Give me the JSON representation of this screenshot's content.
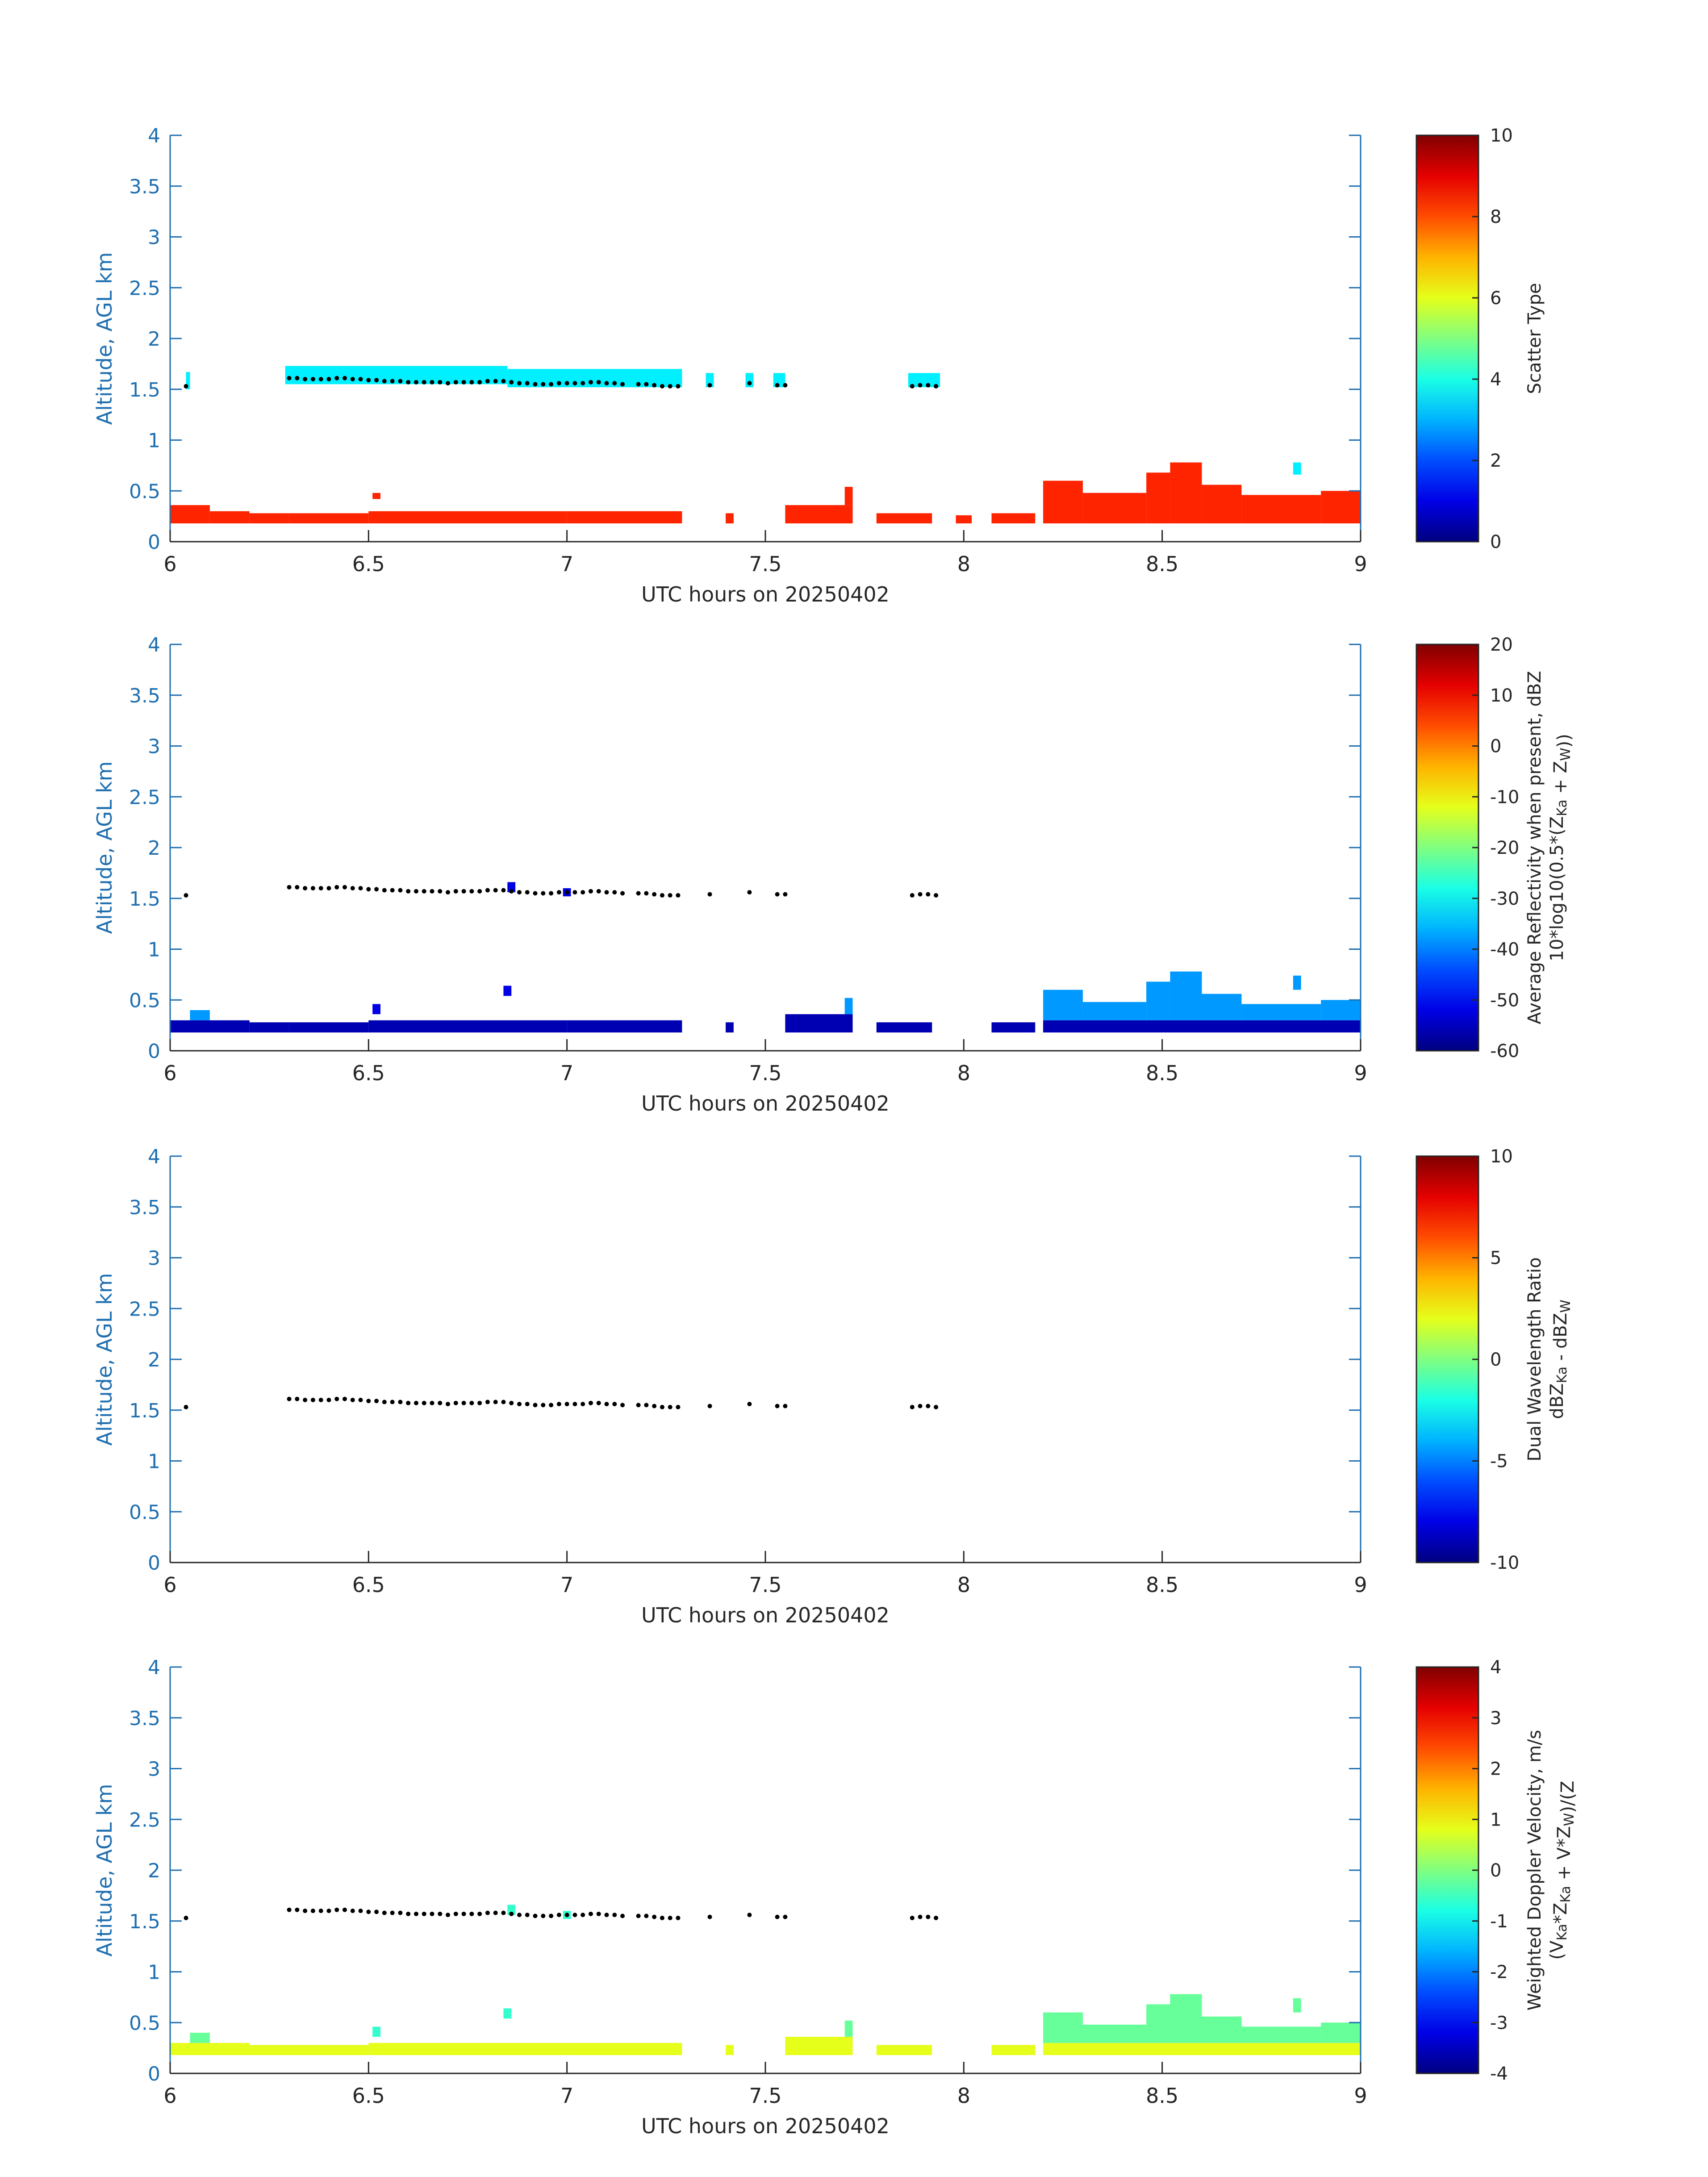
{
  "chart_data": [
    {
      "type": "heatmap",
      "title": "",
      "xlabel": "UTC hours on 20250402",
      "ylabel": "Altitude, AGL km",
      "xlim": [
        6,
        9
      ],
      "ylim": [
        0,
        4
      ],
      "xticks": [
        "6",
        "6.5",
        "7",
        "7.5",
        "8",
        "8.5",
        "9"
      ],
      "yticks": [
        "0",
        "0.5",
        "1",
        "1.5",
        "2",
        "2.5",
        "3",
        "3.5",
        "4"
      ],
      "colorbar": {
        "label": "Scatter Type",
        "min": 0,
        "max": 10,
        "ticks": [
          "0",
          "2",
          "4",
          "6",
          "8",
          "10"
        ]
      },
      "layers": [
        {
          "name": "cloud layer",
          "value": 3.6,
          "segments": [
            [
              6.04,
              6.05,
              1.5,
              1.67
            ],
            [
              6.29,
              6.85,
              1.55,
              1.73
            ],
            [
              6.85,
              7.29,
              1.52,
              1.7
            ],
            [
              7.35,
              7.37,
              1.52,
              1.66
            ],
            [
              7.45,
              7.47,
              1.52,
              1.66
            ],
            [
              7.52,
              7.55,
              1.52,
              1.66
            ],
            [
              7.86,
              7.94,
              1.52,
              1.66
            ],
            [
              8.83,
              8.85,
              0.66,
              0.78
            ]
          ]
        },
        {
          "name": "near-surface layer",
          "value": 8.4,
          "segments": [
            [
              6.0,
              6.1,
              0.18,
              0.36
            ],
            [
              6.1,
              6.2,
              0.18,
              0.3
            ],
            [
              6.2,
              6.3,
              0.18,
              0.28
            ],
            [
              6.3,
              6.5,
              0.18,
              0.28
            ],
            [
              6.51,
              6.53,
              0.42,
              0.48
            ],
            [
              6.5,
              7.0,
              0.18,
              0.3
            ],
            [
              7.0,
              7.29,
              0.18,
              0.3
            ],
            [
              7.4,
              7.42,
              0.18,
              0.28
            ],
            [
              7.55,
              7.72,
              0.18,
              0.36
            ],
            [
              7.7,
              7.72,
              0.36,
              0.54
            ],
            [
              7.78,
              7.92,
              0.18,
              0.28
            ],
            [
              7.98,
              8.02,
              0.18,
              0.26
            ],
            [
              8.07,
              8.18,
              0.18,
              0.28
            ],
            [
              8.2,
              8.3,
              0.18,
              0.6
            ],
            [
              8.3,
              8.46,
              0.18,
              0.48
            ],
            [
              8.46,
              8.52,
              0.18,
              0.68
            ],
            [
              8.52,
              8.6,
              0.18,
              0.78
            ],
            [
              8.6,
              8.7,
              0.18,
              0.56
            ],
            [
              8.7,
              8.9,
              0.18,
              0.46
            ],
            [
              8.9,
              9.0,
              0.18,
              0.5
            ]
          ]
        }
      ],
      "markers": {
        "name": "cloud base",
        "x": [
          6.04,
          6.3,
          6.32,
          6.34,
          6.36,
          6.38,
          6.4,
          6.42,
          6.44,
          6.46,
          6.48,
          6.5,
          6.52,
          6.54,
          6.56,
          6.58,
          6.6,
          6.62,
          6.64,
          6.66,
          6.68,
          6.7,
          6.72,
          6.74,
          6.76,
          6.78,
          6.8,
          6.82,
          6.84,
          6.86,
          6.88,
          6.9,
          6.92,
          6.94,
          6.96,
          6.98,
          7.0,
          7.02,
          7.04,
          7.06,
          7.08,
          7.1,
          7.12,
          7.14,
          7.18,
          7.2,
          7.22,
          7.24,
          7.26,
          7.28,
          7.36,
          7.46,
          7.53,
          7.55,
          7.87,
          7.89,
          7.91,
          7.93
        ],
        "y": [
          1.53,
          1.61,
          1.61,
          1.6,
          1.6,
          1.6,
          1.6,
          1.61,
          1.61,
          1.6,
          1.6,
          1.59,
          1.59,
          1.58,
          1.58,
          1.58,
          1.57,
          1.57,
          1.57,
          1.57,
          1.57,
          1.56,
          1.57,
          1.57,
          1.57,
          1.57,
          1.58,
          1.58,
          1.58,
          1.57,
          1.56,
          1.56,
          1.55,
          1.55,
          1.55,
          1.56,
          1.56,
          1.56,
          1.56,
          1.57,
          1.57,
          1.56,
          1.56,
          1.55,
          1.55,
          1.55,
          1.54,
          1.53,
          1.53,
          1.53,
          1.54,
          1.56,
          1.54,
          1.54,
          1.53,
          1.54,
          1.54,
          1.53
        ]
      }
    },
    {
      "type": "heatmap",
      "title": "",
      "xlabel": "UTC hours on 20250402",
      "ylabel": "Altitude, AGL km",
      "xlim": [
        6,
        9
      ],
      "ylim": [
        0,
        4
      ],
      "xticks": [
        "6",
        "6.5",
        "7",
        "7.5",
        "8",
        "8.5",
        "9"
      ],
      "yticks": [
        "0",
        "0.5",
        "1",
        "1.5",
        "2",
        "2.5",
        "3",
        "3.5",
        "4"
      ],
      "colorbar": {
        "label": "Average Reflectivity when present, dBZ",
        "label2": "10*log10(0.5*(Z",
        "label2_sub1": "Ka",
        "label2_mid": " + Z",
        "label2_sub2": "W",
        "label2_end": "))",
        "min": -60,
        "max": 20,
        "ticks": [
          "-60",
          "-50",
          "-40",
          "-30",
          "-20",
          "-10",
          "0",
          "10",
          "20"
        ]
      },
      "layers": [
        {
          "name": "cloud echoes",
          "value": -52,
          "segments": [
            [
              6.85,
              6.87,
              1.56,
              1.66
            ],
            [
              6.99,
              7.01,
              1.52,
              1.6
            ],
            [
              6.84,
              6.86,
              0.54,
              0.64
            ],
            [
              6.51,
              6.53,
              0.36,
              0.46
            ]
          ]
        },
        {
          "name": "near-surface echoes",
          "value": -56,
          "segments": [
            [
              6.0,
              6.2,
              0.18,
              0.3
            ],
            [
              6.2,
              6.3,
              0.18,
              0.28
            ],
            [
              6.3,
              6.5,
              0.18,
              0.28
            ],
            [
              6.5,
              7.0,
              0.18,
              0.3
            ],
            [
              7.0,
              7.29,
              0.18,
              0.3
            ],
            [
              7.4,
              7.42,
              0.18,
              0.28
            ],
            [
              7.55,
              7.72,
              0.18,
              0.36
            ],
            [
              7.78,
              7.92,
              0.18,
              0.28
            ],
            [
              8.07,
              8.18,
              0.18,
              0.28
            ],
            [
              8.2,
              9.0,
              0.18,
              0.3
            ]
          ]
        },
        {
          "name": "upper low-level echoes",
          "value": -38,
          "segments": [
            [
              8.2,
              8.3,
              0.3,
              0.6
            ],
            [
              8.3,
              8.46,
              0.3,
              0.48
            ],
            [
              8.46,
              8.52,
              0.3,
              0.68
            ],
            [
              8.52,
              8.6,
              0.3,
              0.78
            ],
            [
              8.6,
              8.7,
              0.3,
              0.56
            ],
            [
              8.7,
              8.9,
              0.3,
              0.46
            ],
            [
              8.9,
              9.0,
              0.3,
              0.5
            ],
            [
              8.83,
              8.85,
              0.6,
              0.74
            ],
            [
              7.7,
              7.72,
              0.36,
              0.52
            ],
            [
              6.05,
              6.1,
              0.3,
              0.4
            ]
          ]
        }
      ],
      "markers": {
        "name": "cloud base",
        "same_as_panel": 1
      }
    },
    {
      "type": "heatmap",
      "title": "",
      "xlabel": "UTC hours on 20250402",
      "ylabel": "Altitude, AGL km",
      "xlim": [
        6,
        9
      ],
      "ylim": [
        0,
        4
      ],
      "xticks": [
        "6",
        "6.5",
        "7",
        "7.5",
        "8",
        "8.5",
        "9"
      ],
      "yticks": [
        "0",
        "0.5",
        "1",
        "1.5",
        "2",
        "2.5",
        "3",
        "3.5",
        "4"
      ],
      "colorbar": {
        "label": "Dual Wavelength Ratio",
        "label2": "dBZ",
        "label2_sub1": "Ka",
        "label2_mid": " - dBZ",
        "label2_sub2": "W",
        "label2_end": "",
        "min": -10,
        "max": 10,
        "ticks": [
          "-10",
          "-5",
          "0",
          "5",
          "10"
        ]
      },
      "layers": [],
      "markers": {
        "name": "cloud base",
        "same_as_panel": 1
      }
    },
    {
      "type": "heatmap",
      "title": "",
      "xlabel": "UTC hours on 20250402",
      "ylabel": "Altitude, AGL km",
      "xlim": [
        6,
        9
      ],
      "ylim": [
        0,
        4
      ],
      "xticks": [
        "6",
        "6.5",
        "7",
        "7.5",
        "8",
        "8.5",
        "9"
      ],
      "yticks": [
        "0",
        "0.5",
        "1",
        "1.5",
        "2",
        "2.5",
        "3",
        "3.5",
        "4"
      ],
      "colorbar": {
        "label": "Weighted Doppler Velocity, m/s",
        "label2": "(V",
        "label2_sub1": "Ka",
        "label2_mid": "*Z",
        "label2_sub2": "Ka",
        "label2_end": " + V",
        "label2_tail": "*Z",
        "label2_tail_sub": "W",
        "label2_close": ")/(Z",
        "min": -4,
        "max": 4,
        "ticks": [
          "-4",
          "-3",
          "-2",
          "-1",
          "0",
          "1",
          "2",
          "3",
          "4"
        ]
      },
      "layers": [
        {
          "name": "cloud echoes",
          "value": -0.6,
          "segments": [
            [
              6.85,
              6.87,
              1.56,
              1.66
            ],
            [
              6.99,
              7.01,
              1.52,
              1.6
            ],
            [
              6.84,
              6.86,
              0.54,
              0.64
            ],
            [
              6.51,
              6.53,
              0.36,
              0.46
            ]
          ]
        },
        {
          "name": "near-surface echoes",
          "value": 0.8,
          "segments": [
            [
              6.0,
              6.2,
              0.18,
              0.3
            ],
            [
              6.2,
              6.3,
              0.18,
              0.28
            ],
            [
              6.3,
              6.5,
              0.18,
              0.28
            ],
            [
              6.5,
              7.0,
              0.18,
              0.3
            ],
            [
              7.0,
              7.29,
              0.18,
              0.3
            ],
            [
              7.4,
              7.42,
              0.18,
              0.28
            ],
            [
              7.55,
              7.72,
              0.18,
              0.36
            ],
            [
              7.78,
              7.92,
              0.18,
              0.28
            ],
            [
              8.07,
              8.18,
              0.18,
              0.28
            ],
            [
              8.2,
              9.0,
              0.18,
              0.3
            ]
          ]
        },
        {
          "name": "upper low-level echoes",
          "value": -0.2,
          "segments": [
            [
              8.2,
              8.3,
              0.3,
              0.6
            ],
            [
              8.3,
              8.46,
              0.3,
              0.48
            ],
            [
              8.46,
              8.52,
              0.3,
              0.68
            ],
            [
              8.52,
              8.6,
              0.3,
              0.78
            ],
            [
              8.6,
              8.7,
              0.3,
              0.56
            ],
            [
              8.7,
              8.9,
              0.3,
              0.46
            ],
            [
              8.9,
              9.0,
              0.3,
              0.5
            ],
            [
              8.83,
              8.85,
              0.6,
              0.74
            ],
            [
              7.7,
              7.72,
              0.36,
              0.52
            ],
            [
              6.05,
              6.1,
              0.3,
              0.4
            ]
          ]
        }
      ],
      "markers": {
        "name": "cloud base",
        "same_as_panel": 1
      }
    }
  ]
}
